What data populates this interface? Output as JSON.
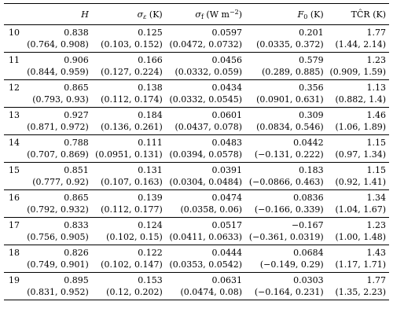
{
  "header": {
    "row_label": "",
    "h": "H",
    "sigma_e_symbol": "σ",
    "sigma_e_sub": "ε",
    "sigma_e_unit": " (K)",
    "sigma_f_symbol": "σ",
    "sigma_f_sub": "f",
    "sigma_f_unit": " (W m",
    "sigma_f_unit_sup": "−2",
    "sigma_f_unit_close": ")",
    "f0_symbol": "F",
    "f0_sub": "0",
    "f0_unit": " (K)",
    "tcr": "TĈR (K)"
  },
  "rows": [
    {
      "id": "10",
      "h": "0.838",
      "h_ci": "(0.764, 0.908)",
      "se": "0.125",
      "se_ci": "(0.103, 0.152)",
      "sf": "0.0597",
      "sf_ci": "(0.0472, 0.0732)",
      "f0": "0.201",
      "f0_ci": "(0.0335, 0.372)",
      "tcr": "1.77",
      "tcr_ci": "(1.44, 2.14)"
    },
    {
      "id": "11",
      "h": "0.906",
      "h_ci": "(0.844, 0.959)",
      "se": "0.166",
      "se_ci": "(0.127, 0.224)",
      "sf": "0.0456",
      "sf_ci": "(0.0332, 0.059)",
      "f0": "0.579",
      "f0_ci": "(0.289, 0.885)",
      "tcr": "1.23",
      "tcr_ci": "(0.909, 1.59)"
    },
    {
      "id": "12",
      "h": "0.865",
      "h_ci": "(0.793, 0.93)",
      "se": "0.138",
      "se_ci": "(0.112, 0.174)",
      "sf": "0.0434",
      "sf_ci": "(0.0332, 0.0545)",
      "f0": "0.356",
      "f0_ci": "(0.0901, 0.631)",
      "tcr": "1.13",
      "tcr_ci": "(0.882, 1.4)"
    },
    {
      "id": "13",
      "h": "0.927",
      "h_ci": "(0.871, 0.972)",
      "se": "0.184",
      "se_ci": "(0.136, 0.261)",
      "sf": "0.0601",
      "sf_ci": "(0.0437, 0.078)",
      "f0": "0.309",
      "f0_ci": "(0.0834, 0.546)",
      "tcr": "1.46",
      "tcr_ci": "(1.06, 1.89)"
    },
    {
      "id": "14",
      "h": "0.788",
      "h_ci": "(0.707, 0.869)",
      "se": "0.111",
      "se_ci": "(0.0951, 0.131)",
      "sf": "0.0483",
      "sf_ci": "(0.0394, 0.0578)",
      "f0": "0.0442",
      "f0_ci": "(−0.131, 0.222)",
      "tcr": "1.15",
      "tcr_ci": "(0.97, 1.34)"
    },
    {
      "id": "15",
      "h": "0.851",
      "h_ci": "(0.777, 0.92)",
      "se": "0.131",
      "se_ci": "(0.107, 0.163)",
      "sf": "0.0391",
      "sf_ci": "(0.0304, 0.0484)",
      "f0": "0.183",
      "f0_ci": "(−0.0866, 0.463)",
      "tcr": "1.15",
      "tcr_ci": "(0.92, 1.41)"
    },
    {
      "id": "16",
      "h": "0.865",
      "h_ci": "(0.792, 0.932)",
      "se": "0.139",
      "se_ci": "(0.112, 0.177)",
      "sf": "0.0474",
      "sf_ci": "(0.0358, 0.06)",
      "f0": "0.0836",
      "f0_ci": "(−0.166, 0.339)",
      "tcr": "1.34",
      "tcr_ci": "(1.04, 1.67)"
    },
    {
      "id": "17",
      "h": "0.833",
      "h_ci": "(0.756, 0.905)",
      "se": "0.124",
      "se_ci": "(0.102, 0.15)",
      "sf": "0.0517",
      "sf_ci": "(0.0411, 0.0633)",
      "f0": "−0.167",
      "f0_ci": "(−0.361, 0.0319)",
      "tcr": "1.23",
      "tcr_ci": "(1.00, 1.48)"
    },
    {
      "id": "18",
      "h": "0.826",
      "h_ci": "(0.749, 0.901)",
      "se": "0.122",
      "se_ci": "(0.102, 0.147)",
      "sf": "0.0444",
      "sf_ci": "(0.0353, 0.0542)",
      "f0": "0.0684",
      "f0_ci": "(−0.149, 0.29)",
      "tcr": "1.43",
      "tcr_ci": "(1.17, 1.71)"
    },
    {
      "id": "19",
      "h": "0.895",
      "h_ci": "(0.831, 0.952)",
      "se": "0.153",
      "se_ci": "(0.12, 0.202)",
      "sf": "0.0631",
      "sf_ci": "(0.0474, 0.08)",
      "f0": "0.0303",
      "f0_ci": "(−0.164, 0.231)",
      "tcr": "1.77",
      "tcr_ci": "(1.35, 2.23)"
    }
  ]
}
